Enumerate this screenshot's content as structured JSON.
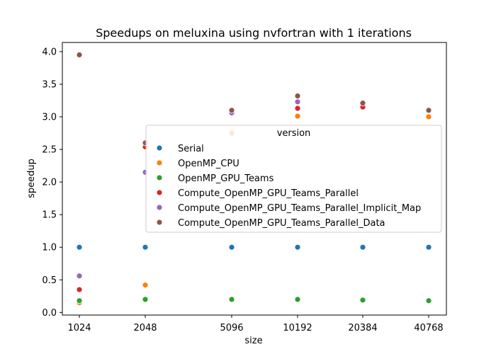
{
  "chart_data": {
    "type": "scatter",
    "title": "Speedups on meluxina using nvfortran with 1 iterations",
    "xlabel": "size",
    "ylabel": "speedup",
    "x_scale": "categorical",
    "categories": [
      "1024",
      "2048",
      "5096",
      "10192",
      "20384",
      "40768"
    ],
    "ylim": [
      -0.04,
      4.14
    ],
    "yticks": [
      "0.0",
      "0.5",
      "1.0",
      "1.5",
      "2.0",
      "2.5",
      "3.0",
      "3.5",
      "4.0"
    ],
    "grid": false,
    "legend": {
      "title": "version",
      "placement": "center-right"
    },
    "series": [
      {
        "name": "Serial",
        "color": "#1f77b4",
        "values": [
          1.0,
          1.0,
          1.0,
          1.0,
          1.0,
          1.0
        ]
      },
      {
        "name": "OpenMP_CPU",
        "color": "#ff7f0e",
        "values": [
          0.15,
          0.42,
          2.75,
          3.01,
          null,
          3.0
        ]
      },
      {
        "name": "OpenMP_GPU_Teams",
        "color": "#2ca02c",
        "values": [
          0.18,
          0.2,
          0.2,
          0.2,
          0.19,
          0.18
        ]
      },
      {
        "name": "Compute_OpenMP_GPU_Teams_Parallel",
        "color": "#d62728",
        "values": [
          0.35,
          2.54,
          null,
          3.13,
          3.15,
          null
        ]
      },
      {
        "name": "Compute_OpenMP_GPU_Teams_Parallel_Implicit_Map",
        "color": "#9467bd",
        "values": [
          0.56,
          2.15,
          3.06,
          3.23,
          null,
          null
        ]
      },
      {
        "name": "Compute_OpenMP_GPU_Teams_Parallel_Data",
        "color": "#8c564b",
        "values": [
          3.95,
          2.6,
          3.1,
          3.32,
          3.21,
          3.1
        ]
      }
    ]
  }
}
